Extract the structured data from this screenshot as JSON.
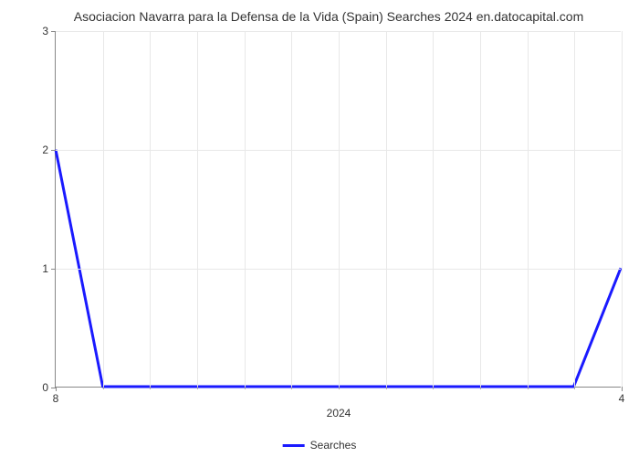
{
  "chart": {
    "type": "line",
    "title": "Asociacion Navarra para la Defensa de la Vida (Spain) Searches 2024 en.datocapital.com",
    "title_fontsize": 14,
    "title_color": "#333333",
    "background_color": "#ffffff",
    "grid_color": "#e8e8e8",
    "axis_color": "#888888",
    "tick_label_fontsize": 12,
    "tick_label_color": "#333333",
    "xlim": [
      0,
      12
    ],
    "ylim": [
      0,
      3
    ],
    "ytick_values": [
      0,
      1,
      2,
      3
    ],
    "ytick_labels": [
      "0",
      "1",
      "2",
      "3"
    ],
    "x_major_ticks": [
      0,
      12
    ],
    "x_major_labels": [
      "8",
      "4"
    ],
    "x_minor_ticks": [
      1,
      2,
      3,
      4,
      5,
      6,
      7,
      8,
      9,
      10,
      11
    ],
    "x_axis_label": "2024",
    "x_axis_label_position": 6,
    "vgrid_positions": [
      1,
      2,
      3,
      4,
      5,
      6,
      7,
      8,
      9,
      10,
      11,
      12
    ],
    "line_color": "#1a1aff",
    "line_width": 3,
    "data_points": [
      {
        "x": 0,
        "y": 2
      },
      {
        "x": 1,
        "y": 0
      },
      {
        "x": 2,
        "y": 0
      },
      {
        "x": 3,
        "y": 0
      },
      {
        "x": 4,
        "y": 0
      },
      {
        "x": 5,
        "y": 0
      },
      {
        "x": 6,
        "y": 0
      },
      {
        "x": 7,
        "y": 0
      },
      {
        "x": 8,
        "y": 0
      },
      {
        "x": 9,
        "y": 0
      },
      {
        "x": 10,
        "y": 0
      },
      {
        "x": 11,
        "y": 0
      },
      {
        "x": 12,
        "y": 1
      }
    ],
    "legend": {
      "label": "Searches",
      "line_color": "#1a1aff"
    }
  }
}
